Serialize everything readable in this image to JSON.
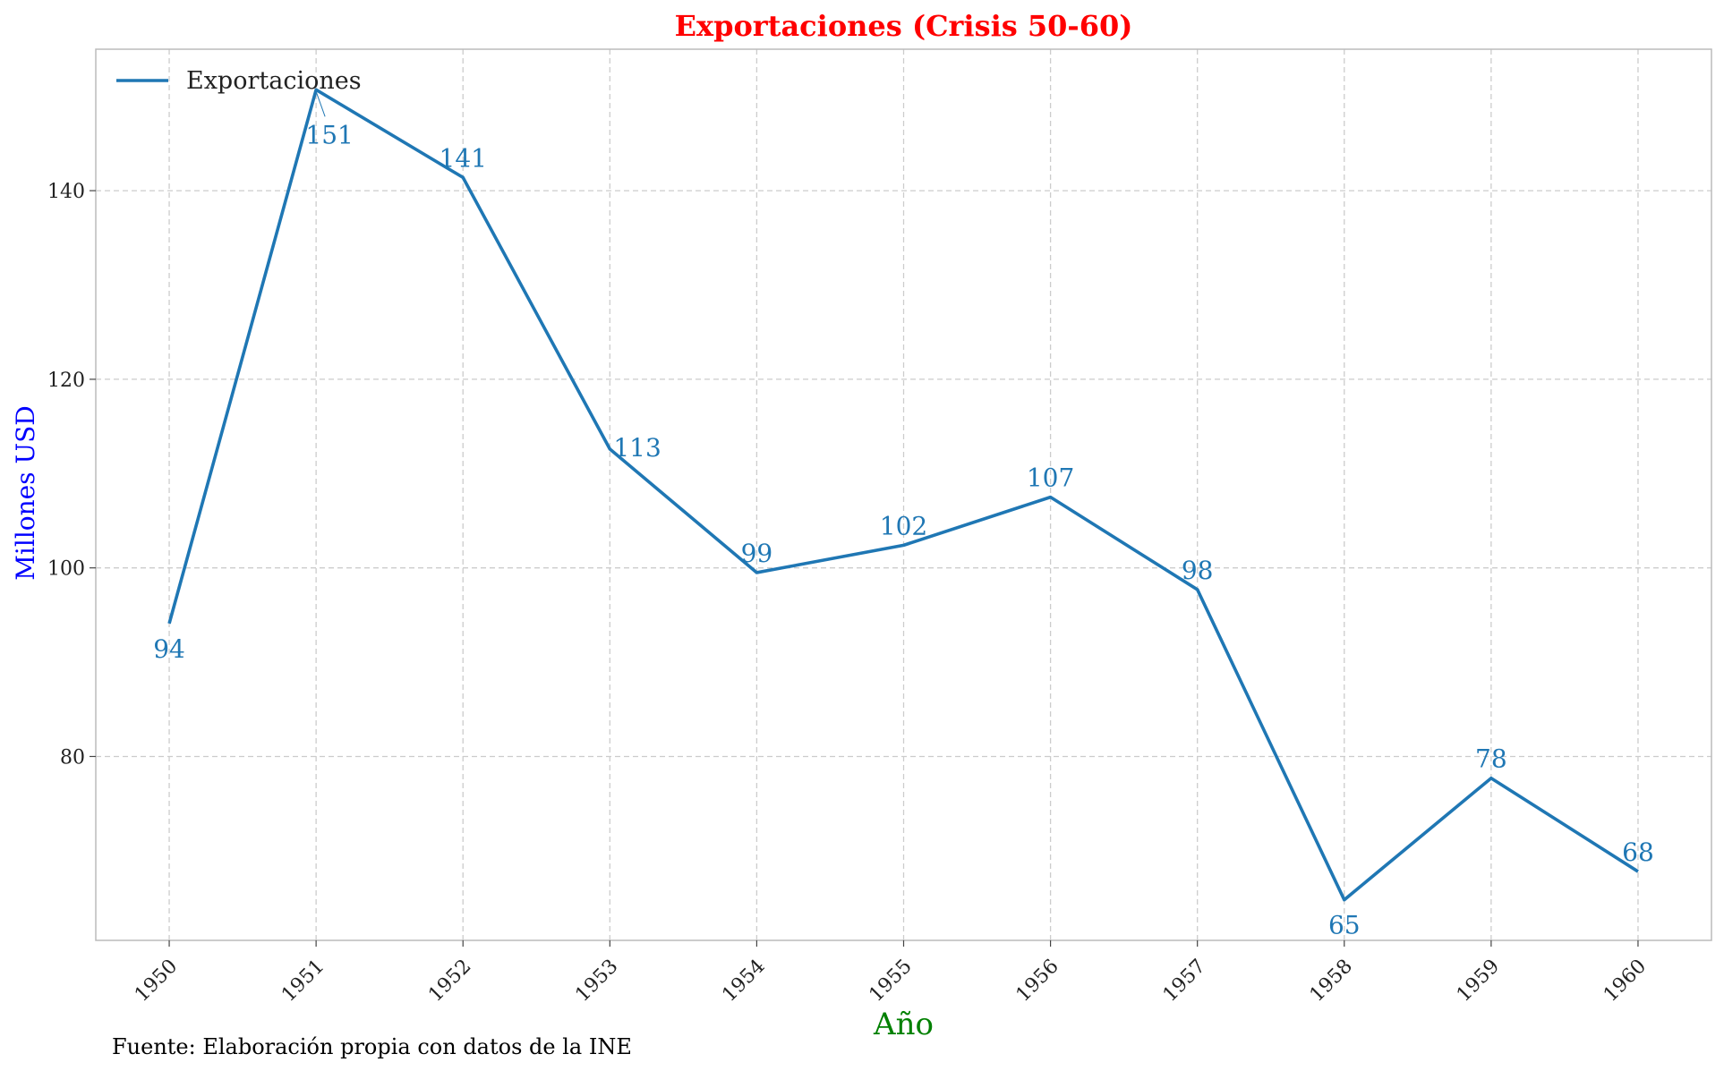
{
  "chart_data": {
    "type": "line",
    "title": "Exportaciones (Crisis 50-60)",
    "xlabel": "Año",
    "ylabel": "Millones USD",
    "x": [
      1950,
      1951,
      1952,
      1953,
      1954,
      1955,
      1956,
      1957,
      1958,
      1959,
      1960
    ],
    "x_tick_labels": [
      "1950",
      "1951",
      "1952",
      "1953",
      "1954",
      "1955",
      "1956",
      "1957",
      "1958",
      "1959",
      "1960"
    ],
    "y_ticks": [
      80,
      100,
      120,
      140
    ],
    "y_tick_labels": [
      "80",
      "100",
      "120",
      "140"
    ],
    "xlim": [
      1949.5,
      1960.5
    ],
    "ylim": [
      60.5,
      155
    ],
    "series": [
      {
        "name": "Exportaciones",
        "values": [
          94.1,
          150.7,
          141.4,
          112.6,
          99.5,
          102.4,
          107.5,
          97.7,
          64.8,
          77.7,
          67.8
        ],
        "labels": [
          "94",
          "151",
          "141",
          "113",
          "99",
          "102",
          "107",
          "98",
          "65",
          "78",
          "68"
        ],
        "label_position": [
          "below",
          "below",
          "above",
          "right",
          "above",
          "above",
          "above",
          "above",
          "below",
          "above",
          "above"
        ]
      }
    ],
    "legend": {
      "entries": [
        "Exportaciones"
      ],
      "position": "top-left"
    },
    "grid": true,
    "footnote": "Fuente: Elaboración propia con datos de la INE",
    "colors": {
      "line": "#1f77b4",
      "label": "#1f77b4",
      "title": "#ff0000",
      "xlabel": "#008000",
      "ylabel": "#0000ff",
      "grid": "#cccccc",
      "frame": "#bbbbbb"
    }
  }
}
